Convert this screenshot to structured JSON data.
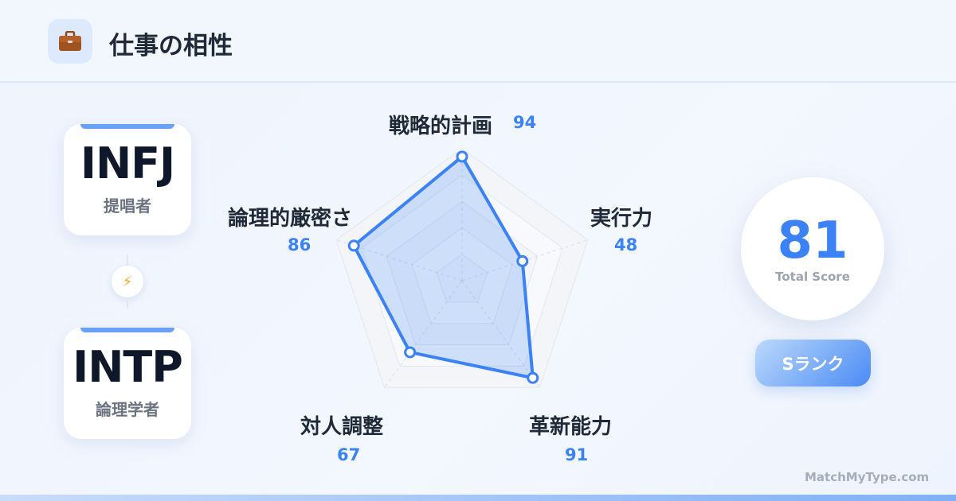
{
  "header": {
    "icon": "briefcase-icon",
    "title": "仕事の相性"
  },
  "types": [
    {
      "code": "INFJ",
      "name": "提唱者"
    },
    {
      "code": "INTP",
      "name": "論理学者"
    }
  ],
  "connector_icon": "lightning-icon",
  "chart_data": {
    "type": "radar",
    "categories": [
      "戦略的計画",
      "実行力",
      "革新能力",
      "対人調整",
      "論理的厳密さ"
    ],
    "values": [
      94,
      48,
      91,
      67,
      86
    ],
    "value_labels": [
      "94",
      "48",
      "91",
      "67",
      "86"
    ],
    "range": [
      0,
      100
    ],
    "grid_levels": 5,
    "color": "#3b82f6"
  },
  "score": {
    "value": "81",
    "caption": "Total Score"
  },
  "rank": {
    "label": "Sランク"
  },
  "footer": "MatchMyType.com"
}
